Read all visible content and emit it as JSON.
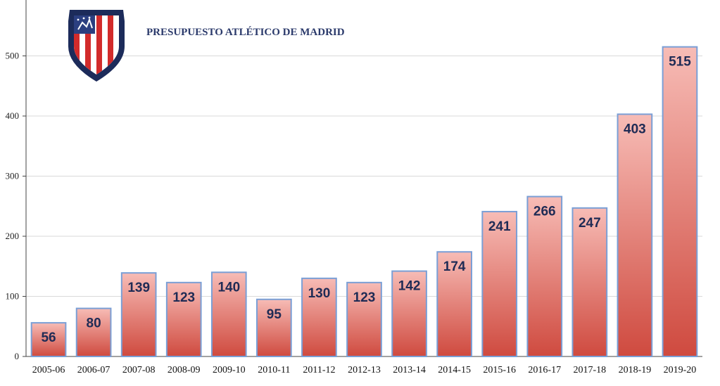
{
  "chart_data": {
    "type": "bar",
    "title": "PRESUPUESTO ATLÉTICO DE MADRID",
    "xlabel": "",
    "ylabel": "",
    "categories": [
      "2005-06",
      "2006-07",
      "2007-08",
      "2008-09",
      "2009-10",
      "2010-11",
      "2011-12",
      "2012-13",
      "2013-14",
      "2014-15",
      "2015-16",
      "2016-17",
      "2017-18",
      "2018-19",
      "2019-20"
    ],
    "values": [
      56,
      80,
      139,
      123,
      140,
      95,
      130,
      123,
      142,
      174,
      241,
      266,
      247,
      403,
      515
    ],
    "ylim": [
      0,
      600
    ],
    "yticks": [
      0,
      100,
      200,
      300,
      400,
      500
    ],
    "grid": true,
    "legend": "none",
    "data_labels": true,
    "colors": {
      "bar_top": "#f7bcb6",
      "bar_bottom": "#cf4a3f",
      "bar_border": "#7a9fd6",
      "label": "#1f2b55",
      "title": "#2b3a6b",
      "grid": "#d9d9d9"
    },
    "logo": {
      "name": "atletico-madrid-crest-icon"
    }
  }
}
